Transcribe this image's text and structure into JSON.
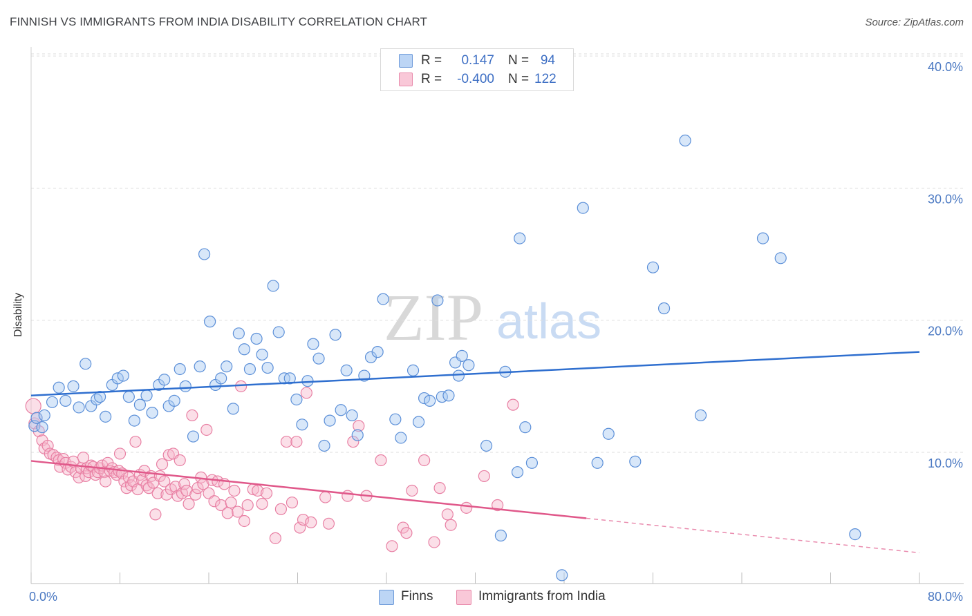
{
  "header": {
    "title": "FINNISH VS IMMIGRANTS FROM INDIA DISABILITY CORRELATION CHART",
    "source": "Source: ZipAtlas.com"
  },
  "watermark": {
    "zip": "ZIP",
    "atlas": "atlas"
  },
  "legend": {
    "finns": {
      "r_label": "R =",
      "r_value": "0.147",
      "n_label": "N =",
      "n_value": "94"
    },
    "india": {
      "r_label": "R =",
      "r_value": "-0.400",
      "n_label": "N =",
      "n_value": "122"
    }
  },
  "colors": {
    "finns_fill": "#a9c9f2",
    "finns_stroke": "#5b8fd8",
    "finns_line": "#2f6fcf",
    "india_fill": "#f7b8cc",
    "india_stroke": "#e87fa3",
    "india_line": "#e0588a",
    "tick_text": "#4a78c2",
    "grid": "#dedede"
  },
  "chart_data": {
    "type": "scatter",
    "title": "FINNISH VS IMMIGRANTS FROM INDIA DISABILITY CORRELATION CHART",
    "xlabel": "",
    "ylabel": "Disability",
    "xlim": [
      0,
      80
    ],
    "ylim": [
      0,
      42
    ],
    "x_tick_labels": [
      "0.0%",
      "80.0%"
    ],
    "y_ticks": [
      10,
      20,
      30,
      40
    ],
    "y_tick_labels": [
      "10.0%",
      "20.0%",
      "30.0%",
      "40.0%"
    ],
    "grid": true,
    "legend_position": "top-center",
    "series": [
      {
        "name": "Finns",
        "r": 0.147,
        "n": 94,
        "trend": {
          "x": [
            0,
            80
          ],
          "y": [
            14.3,
            17.6
          ],
          "dashed_from": null
        },
        "points": [
          [
            0.3,
            12.0
          ],
          [
            0.5,
            12.6
          ],
          [
            1.0,
            11.9
          ],
          [
            1.2,
            12.8
          ],
          [
            1.9,
            13.8
          ],
          [
            2.5,
            14.9
          ],
          [
            3.1,
            13.9
          ],
          [
            3.8,
            15.0
          ],
          [
            4.3,
            13.4
          ],
          [
            4.9,
            16.7
          ],
          [
            5.4,
            13.5
          ],
          [
            5.9,
            14.0
          ],
          [
            6.2,
            14.2
          ],
          [
            6.7,
            12.7
          ],
          [
            7.3,
            15.1
          ],
          [
            7.8,
            15.6
          ],
          [
            8.3,
            15.8
          ],
          [
            8.8,
            14.2
          ],
          [
            9.3,
            12.4
          ],
          [
            9.8,
            13.6
          ],
          [
            10.4,
            14.3
          ],
          [
            10.9,
            13.0
          ],
          [
            11.5,
            15.1
          ],
          [
            12.0,
            15.5
          ],
          [
            12.4,
            13.5
          ],
          [
            12.9,
            13.9
          ],
          [
            13.4,
            16.3
          ],
          [
            13.9,
            15.0
          ],
          [
            14.6,
            11.2
          ],
          [
            15.2,
            16.5
          ],
          [
            15.6,
            25.0
          ],
          [
            16.1,
            19.9
          ],
          [
            16.6,
            15.1
          ],
          [
            17.1,
            15.6
          ],
          [
            17.6,
            16.5
          ],
          [
            18.2,
            13.3
          ],
          [
            18.7,
            19.0
          ],
          [
            19.2,
            17.8
          ],
          [
            19.7,
            16.3
          ],
          [
            20.3,
            18.6
          ],
          [
            20.8,
            17.4
          ],
          [
            21.3,
            16.4
          ],
          [
            21.8,
            22.6
          ],
          [
            22.3,
            19.1
          ],
          [
            22.8,
            15.6
          ],
          [
            23.3,
            15.6
          ],
          [
            23.9,
            14.0
          ],
          [
            24.4,
            12.1
          ],
          [
            24.9,
            15.4
          ],
          [
            25.4,
            18.2
          ],
          [
            25.9,
            17.1
          ],
          [
            26.4,
            10.5
          ],
          [
            26.9,
            12.4
          ],
          [
            27.4,
            18.9
          ],
          [
            27.9,
            13.2
          ],
          [
            28.4,
            16.2
          ],
          [
            28.9,
            12.8
          ],
          [
            29.4,
            11.3
          ],
          [
            30.0,
            15.8
          ],
          [
            30.6,
            17.2
          ],
          [
            31.2,
            17.6
          ],
          [
            31.7,
            21.6
          ],
          [
            32.8,
            12.5
          ],
          [
            33.3,
            11.1
          ],
          [
            34.4,
            16.2
          ],
          [
            34.9,
            12.3
          ],
          [
            35.4,
            14.1
          ],
          [
            35.9,
            13.9
          ],
          [
            36.6,
            21.5
          ],
          [
            37.0,
            14.2
          ],
          [
            37.6,
            14.3
          ],
          [
            38.2,
            16.8
          ],
          [
            38.5,
            15.8
          ],
          [
            38.8,
            17.3
          ],
          [
            39.4,
            16.6
          ],
          [
            41.0,
            10.5
          ],
          [
            42.3,
            3.7
          ],
          [
            42.7,
            16.1
          ],
          [
            43.8,
            8.5
          ],
          [
            44.0,
            26.2
          ],
          [
            44.5,
            11.9
          ],
          [
            45.1,
            9.2
          ],
          [
            47.8,
            0.7
          ],
          [
            49.7,
            28.5
          ],
          [
            51.0,
            9.2
          ],
          [
            52.0,
            11.4
          ],
          [
            56.0,
            24.0
          ],
          [
            57.0,
            20.9
          ],
          [
            58.9,
            33.6
          ],
          [
            60.3,
            12.8
          ],
          [
            65.9,
            26.2
          ],
          [
            67.5,
            24.7
          ],
          [
            74.2,
            3.8
          ],
          [
            54.4,
            9.3
          ]
        ]
      },
      {
        "name": "Immigrants from India",
        "r": -0.4,
        "n": 122,
        "trend": {
          "x": [
            0,
            80
          ],
          "y": [
            9.35,
            2.4
          ],
          "dashed_from": 50
        },
        "points": [
          [
            0.2,
            13.5
          ],
          [
            0.3,
            12.2
          ],
          [
            0.5,
            12.6
          ],
          [
            0.7,
            11.6
          ],
          [
            1.0,
            10.9
          ],
          [
            1.2,
            10.3
          ],
          [
            1.5,
            10.5
          ],
          [
            1.7,
            9.9
          ],
          [
            2.0,
            9.8
          ],
          [
            2.3,
            9.6
          ],
          [
            2.5,
            9.4
          ],
          [
            2.6,
            8.9
          ],
          [
            2.9,
            9.5
          ],
          [
            3.1,
            9.2
          ],
          [
            3.3,
            8.7
          ],
          [
            3.6,
            8.9
          ],
          [
            3.8,
            9.3
          ],
          [
            4.0,
            8.5
          ],
          [
            4.3,
            8.1
          ],
          [
            4.5,
            8.8
          ],
          [
            4.7,
            9.6
          ],
          [
            4.9,
            8.2
          ],
          [
            5.0,
            8.8
          ],
          [
            5.2,
            8.5
          ],
          [
            5.4,
            9.0
          ],
          [
            5.6,
            8.9
          ],
          [
            5.8,
            8.3
          ],
          [
            6.0,
            8.5
          ],
          [
            6.2,
            8.8
          ],
          [
            6.4,
            9.0
          ],
          [
            6.6,
            8.5
          ],
          [
            6.7,
            7.8
          ],
          [
            6.9,
            9.2
          ],
          [
            7.1,
            8.6
          ],
          [
            7.3,
            8.8
          ],
          [
            7.5,
            8.5
          ],
          [
            7.7,
            8.3
          ],
          [
            7.9,
            8.6
          ],
          [
            8.0,
            9.9
          ],
          [
            8.2,
            8.4
          ],
          [
            8.4,
            7.8
          ],
          [
            8.6,
            7.3
          ],
          [
            8.8,
            8.1
          ],
          [
            9.0,
            7.5
          ],
          [
            9.2,
            7.8
          ],
          [
            9.4,
            10.8
          ],
          [
            9.6,
            7.2
          ],
          [
            9.8,
            8.3
          ],
          [
            10.0,
            7.9
          ],
          [
            10.2,
            8.6
          ],
          [
            10.4,
            7.5
          ],
          [
            10.6,
            7.3
          ],
          [
            10.8,
            8.2
          ],
          [
            11.0,
            7.7
          ],
          [
            11.2,
            5.3
          ],
          [
            11.4,
            6.9
          ],
          [
            11.6,
            8.2
          ],
          [
            11.8,
            9.1
          ],
          [
            12.0,
            7.8
          ],
          [
            12.2,
            6.8
          ],
          [
            12.4,
            9.8
          ],
          [
            12.6,
            7.2
          ],
          [
            12.8,
            9.9
          ],
          [
            13.0,
            7.4
          ],
          [
            13.2,
            6.7
          ],
          [
            13.4,
            9.4
          ],
          [
            13.6,
            6.9
          ],
          [
            13.8,
            7.6
          ],
          [
            14.0,
            7.1
          ],
          [
            14.2,
            6.1
          ],
          [
            14.5,
            12.8
          ],
          [
            14.8,
            6.8
          ],
          [
            15.0,
            7.3
          ],
          [
            15.3,
            8.1
          ],
          [
            15.5,
            7.6
          ],
          [
            15.8,
            11.7
          ],
          [
            16.0,
            6.9
          ],
          [
            16.3,
            7.9
          ],
          [
            16.5,
            6.3
          ],
          [
            16.8,
            7.8
          ],
          [
            17.1,
            6.0
          ],
          [
            17.4,
            7.6
          ],
          [
            17.7,
            5.4
          ],
          [
            18.0,
            6.2
          ],
          [
            18.3,
            7.1
          ],
          [
            18.6,
            5.5
          ],
          [
            18.9,
            15.0
          ],
          [
            19.2,
            4.8
          ],
          [
            19.5,
            6.0
          ],
          [
            20.0,
            7.2
          ],
          [
            20.4,
            7.1
          ],
          [
            20.8,
            6.1
          ],
          [
            21.2,
            6.9
          ],
          [
            22.0,
            3.5
          ],
          [
            22.5,
            5.7
          ],
          [
            23.0,
            10.8
          ],
          [
            23.5,
            6.2
          ],
          [
            23.9,
            10.8
          ],
          [
            24.2,
            4.3
          ],
          [
            24.5,
            4.9
          ],
          [
            24.8,
            14.5
          ],
          [
            25.2,
            4.7
          ],
          [
            26.5,
            6.6
          ],
          [
            28.5,
            6.7
          ],
          [
            29.0,
            10.8
          ],
          [
            29.5,
            12.0
          ],
          [
            30.2,
            6.7
          ],
          [
            31.5,
            9.4
          ],
          [
            32.5,
            2.9
          ],
          [
            33.5,
            4.3
          ],
          [
            33.8,
            3.9
          ],
          [
            34.3,
            7.1
          ],
          [
            35.4,
            9.4
          ],
          [
            36.3,
            3.2
          ],
          [
            36.8,
            7.3
          ],
          [
            37.5,
            5.3
          ],
          [
            37.8,
            4.5
          ],
          [
            39.2,
            5.8
          ],
          [
            40.8,
            8.2
          ],
          [
            43.4,
            13.6
          ],
          [
            42.0,
            6.0
          ],
          [
            26.8,
            4.6
          ]
        ]
      }
    ]
  }
}
